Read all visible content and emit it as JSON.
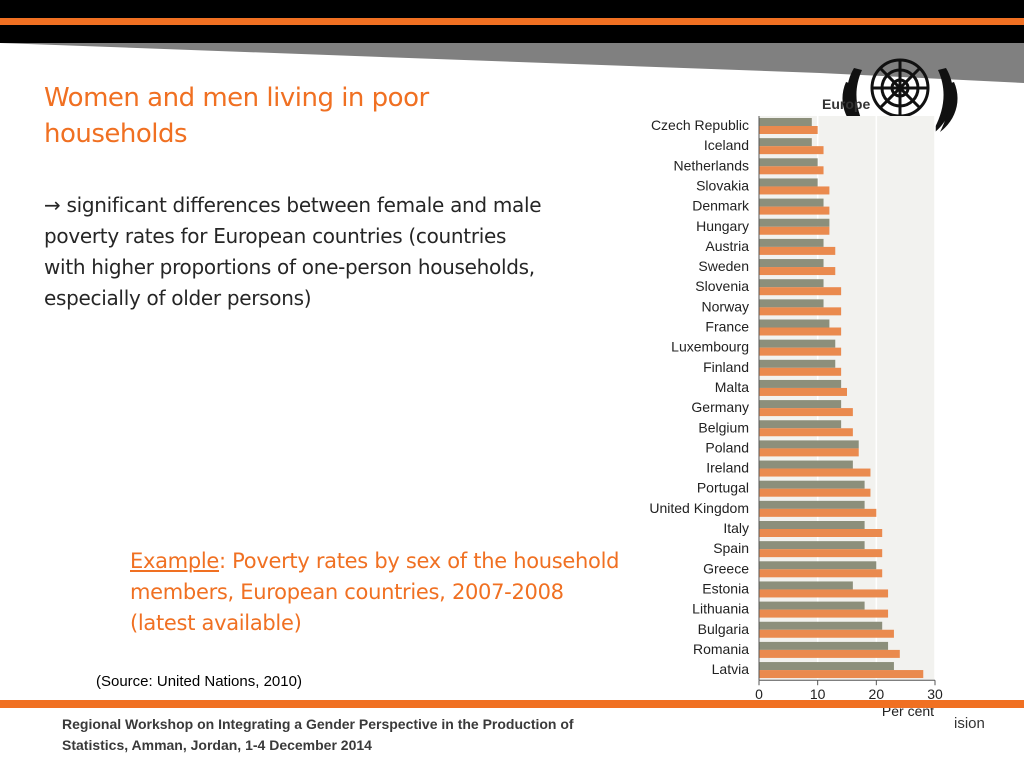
{
  "slide": {
    "title": "Women and men living in poor households",
    "body": "→ significant differences between female and male poverty rates for European countries (countries with higher proportions of one-person households, especially of older persons)",
    "example_label": "Example",
    "example_rest": ": Poverty rates by sex of the household members, European countries, 2007-2008 (latest available)",
    "source": "(Source: United Nations, 2010)",
    "footer": "Regional Workshop on Integrating a Gender Perspective in the Production of Statistics, Amman, Jordan, 1-4 December 2014",
    "footer_right": "ision"
  },
  "colors": {
    "accent": "#f07022",
    "men": "#8c8f7b",
    "women": "#ea8a4e"
  },
  "chart_data": {
    "type": "bar",
    "orientation": "horizontal",
    "title": "Europe",
    "xlabel": "Per cent",
    "xlim": [
      0,
      30
    ],
    "xticks": [
      0,
      10,
      20,
      30
    ],
    "grid": true,
    "categories": [
      "Czech Republic",
      "Iceland",
      "Netherlands",
      "Slovakia",
      "Denmark",
      "Hungary",
      "Austria",
      "Sweden",
      "Slovenia",
      "Norway",
      "France",
      "Luxembourg",
      "Finland",
      "Malta",
      "Germany",
      "Belgium",
      "Poland",
      "Ireland",
      "Portugal",
      "United Kingdom",
      "Italy",
      "Spain",
      "Greece",
      "Estonia",
      "Lithuania",
      "Bulgaria",
      "Romania",
      "Latvia"
    ],
    "series": [
      {
        "values": [
          9,
          9,
          10,
          10,
          11,
          12,
          11,
          11,
          11,
          11,
          12,
          13,
          13,
          14,
          14,
          14,
          17,
          16,
          18,
          18,
          18,
          18,
          20,
          16,
          18,
          21,
          22,
          23
        ]
      },
      {
        "values": [
          10,
          11,
          11,
          12,
          12,
          12,
          13,
          13,
          14,
          14,
          14,
          14,
          14,
          15,
          16,
          16,
          17,
          19,
          19,
          20,
          21,
          21,
          21,
          22,
          22,
          23,
          24,
          28
        ]
      }
    ]
  }
}
